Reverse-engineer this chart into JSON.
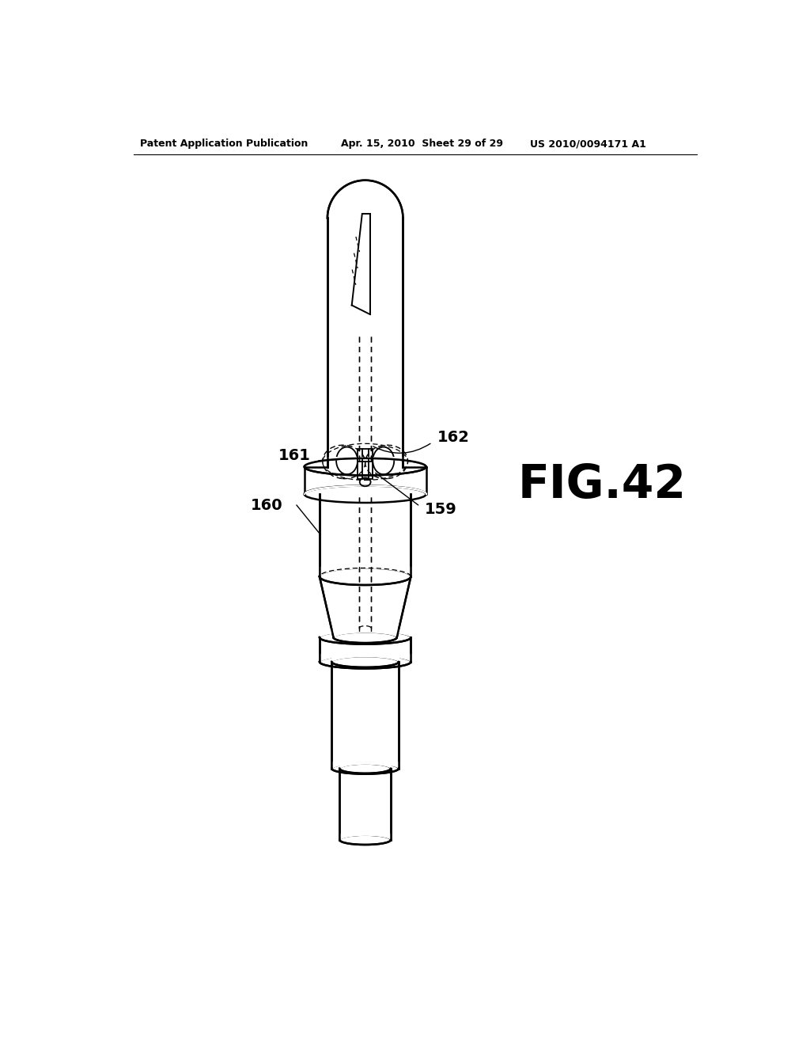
{
  "background_color": "#ffffff",
  "header_left": "Patent Application Publication",
  "header_mid": "Apr. 15, 2010  Sheet 29 of 29",
  "header_right": "US 2010/0094171 A1",
  "fig_label": "FIG.42",
  "line_color": "#000000"
}
